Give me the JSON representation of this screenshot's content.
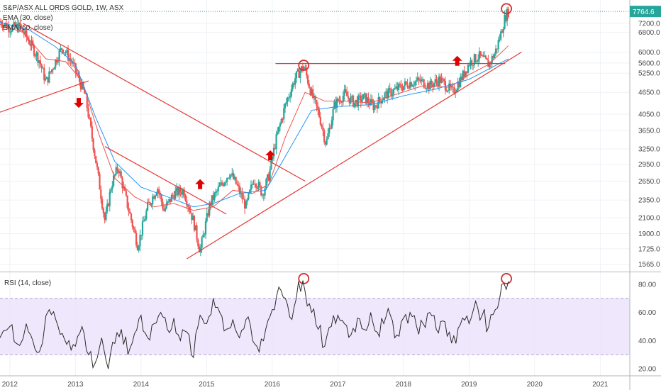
{
  "chart_data": [
    {
      "type": "candlestick",
      "title": "S&P/ASX ALL ORDS GOLD, 1W, ASX",
      "indicators": [
        {
          "name": "EMA (30, close)",
          "color": "#ef5350"
        },
        {
          "name": "EMA (50, close)",
          "color": "#2196f3"
        }
      ],
      "last_price": "7764.6",
      "y_scale": "log",
      "ylim": [
        1500,
        8200
      ],
      "y_ticks": [
        "7200.0",
        "6800.0",
        "6000.0",
        "5600.0",
        "5250.0",
        "4650.0",
        "4050.0",
        "3650.0",
        "3250.0",
        "2950.0",
        "2650.0",
        "2350.0",
        "2100.0",
        "1900.0",
        "1725.0",
        "1565.0"
      ],
      "x_ticks": [
        "2012",
        "2013",
        "2014",
        "2015",
        "2016",
        "2017",
        "2018",
        "2019",
        "2020",
        "2021"
      ],
      "xlim": [
        2011.85,
        2021.45
      ],
      "price_path": [
        [
          2011.85,
          7300
        ],
        [
          2012.0,
          7000
        ],
        [
          2012.15,
          7050
        ],
        [
          2012.3,
          6400
        ],
        [
          2012.45,
          5700
        ],
        [
          2012.55,
          4950
        ],
        [
          2012.7,
          5700
        ],
        [
          2012.8,
          6200
        ],
        [
          2012.95,
          5600
        ],
        [
          2013.05,
          5050
        ],
        [
          2013.15,
          4550
        ],
        [
          2013.3,
          3100
        ],
        [
          2013.45,
          2050
        ],
        [
          2013.55,
          2600
        ],
        [
          2013.65,
          2900
        ],
        [
          2013.8,
          2250
        ],
        [
          2013.95,
          1760
        ],
        [
          2014.1,
          2250
        ],
        [
          2014.25,
          2550
        ],
        [
          2014.35,
          2200
        ],
        [
          2014.5,
          2450
        ],
        [
          2014.65,
          2500
        ],
        [
          2014.8,
          2050
        ],
        [
          2014.9,
          1700
        ],
        [
          2015.05,
          2300
        ],
        [
          2015.2,
          2550
        ],
        [
          2015.35,
          2800
        ],
        [
          2015.45,
          2600
        ],
        [
          2015.6,
          2250
        ],
        [
          2015.72,
          2700
        ],
        [
          2015.85,
          2450
        ],
        [
          2015.95,
          2750
        ],
        [
          2016.05,
          3400
        ],
        [
          2016.2,
          4300
        ],
        [
          2016.35,
          5100
        ],
        [
          2016.48,
          5500
        ],
        [
          2016.6,
          4600
        ],
        [
          2016.72,
          4000
        ],
        [
          2016.82,
          3350
        ],
        [
          2016.95,
          4300
        ],
        [
          2017.1,
          4600
        ],
        [
          2017.25,
          4350
        ],
        [
          2017.4,
          4500
        ],
        [
          2017.55,
          4250
        ],
        [
          2017.7,
          4550
        ],
        [
          2017.85,
          4700
        ],
        [
          2017.95,
          4800
        ],
        [
          2018.1,
          4950
        ],
        [
          2018.25,
          5000
        ],
        [
          2018.4,
          4850
        ],
        [
          2018.55,
          5050
        ],
        [
          2018.65,
          4850
        ],
        [
          2018.75,
          4650
        ],
        [
          2018.9,
          5150
        ],
        [
          2019.0,
          5600
        ],
        [
          2019.15,
          5850
        ],
        [
          2019.3,
          5550
        ],
        [
          2019.4,
          6000
        ],
        [
          2019.48,
          6700
        ],
        [
          2019.55,
          7500
        ],
        [
          2019.6,
          7764.6
        ]
      ],
      "ema30_path": [
        [
          2011.85,
          7150
        ],
        [
          2012.2,
          6800
        ],
        [
          2012.55,
          5750
        ],
        [
          2012.85,
          5650
        ],
        [
          2013.1,
          5000
        ],
        [
          2013.35,
          3600
        ],
        [
          2013.6,
          2700
        ],
        [
          2013.9,
          2400
        ],
        [
          2014.2,
          2250
        ],
        [
          2014.5,
          2300
        ],
        [
          2014.8,
          2200
        ],
        [
          2015.1,
          2250
        ],
        [
          2015.4,
          2500
        ],
        [
          2015.7,
          2450
        ],
        [
          2015.95,
          2600
        ],
        [
          2016.2,
          3500
        ],
        [
          2016.5,
          4650
        ],
        [
          2016.8,
          4400
        ],
        [
          2017.1,
          4400
        ],
        [
          2017.5,
          4350
        ],
        [
          2017.9,
          4600
        ],
        [
          2018.3,
          4850
        ],
        [
          2018.7,
          4800
        ],
        [
          2019.0,
          5200
        ],
        [
          2019.3,
          5550
        ],
        [
          2019.6,
          6250
        ]
      ],
      "ema50_path": [
        [
          2011.85,
          7250
        ],
        [
          2012.3,
          6900
        ],
        [
          2012.7,
          6200
        ],
        [
          2013.0,
          5550
        ],
        [
          2013.3,
          4000
        ],
        [
          2013.6,
          3000
        ],
        [
          2014.0,
          2550
        ],
        [
          2014.4,
          2400
        ],
        [
          2014.8,
          2250
        ],
        [
          2015.1,
          2300
        ],
        [
          2015.5,
          2450
        ],
        [
          2015.9,
          2500
        ],
        [
          2016.2,
          3100
        ],
        [
          2016.6,
          4150
        ],
        [
          2017.0,
          4250
        ],
        [
          2017.5,
          4300
        ],
        [
          2018.0,
          4550
        ],
        [
          2018.5,
          4750
        ],
        [
          2019.0,
          5050
        ],
        [
          2019.6,
          5750
        ]
      ],
      "trendlines": [
        {
          "from": [
            2011.85,
            4100
          ],
          "to": [
            2013.2,
            5000
          ]
        },
        {
          "from": [
            2012.2,
            7200
          ],
          "to": [
            2016.5,
            2650
          ]
        },
        {
          "from": [
            2013.45,
            3300
          ],
          "to": [
            2015.3,
            2150
          ]
        },
        {
          "from": [
            2014.7,
            1620
          ],
          "to": [
            2019.8,
            6000
          ]
        },
        {
          "from": [
            2016.05,
            5580
          ],
          "to": [
            2019.55,
            5580
          ]
        }
      ],
      "arrows": [
        {
          "x": 2013.05,
          "price": 4350,
          "dir": "down"
        },
        {
          "x": 2014.9,
          "price": 2600,
          "dir": "up"
        },
        {
          "x": 2015.97,
          "price": 3120,
          "dir": "up"
        },
        {
          "x": 2018.82,
          "price": 5680,
          "dir": "up"
        }
      ],
      "circles": [
        {
          "x": 2016.48,
          "price": 5520
        },
        {
          "x": 2019.57,
          "price": 7900
        }
      ]
    },
    {
      "type": "line",
      "title": "RSI (14, close)",
      "ylim": [
        15,
        88
      ],
      "y_ticks": [
        "80.00",
        "60.00",
        "40.00",
        "20.00"
      ],
      "band": [
        30,
        70
      ],
      "x": [
        2011.85,
        2012.0,
        2012.1,
        2012.25,
        2012.35,
        2012.45,
        2012.6,
        2012.7,
        2012.8,
        2012.9,
        2013.0,
        2013.1,
        2013.2,
        2013.3,
        2013.4,
        2013.5,
        2013.6,
        2013.7,
        2013.8,
        2013.9,
        2014.0,
        2014.1,
        2014.2,
        2014.3,
        2014.4,
        2014.5,
        2014.6,
        2014.7,
        2014.8,
        2014.9,
        2015.0,
        2015.1,
        2015.2,
        2015.3,
        2015.4,
        2015.5,
        2015.6,
        2015.7,
        2015.8,
        2015.9,
        2016.0,
        2016.1,
        2016.2,
        2016.3,
        2016.4,
        2016.5,
        2016.6,
        2016.7,
        2016.8,
        2016.9,
        2017.0,
        2017.1,
        2017.2,
        2017.3,
        2017.4,
        2017.5,
        2017.6,
        2017.7,
        2017.8,
        2017.9,
        2018.0,
        2018.1,
        2018.2,
        2018.3,
        2018.4,
        2018.5,
        2018.6,
        2018.7,
        2018.8,
        2018.9,
        2019.0,
        2019.1,
        2019.2,
        2019.3,
        2019.4,
        2019.5,
        2019.6
      ],
      "values": [
        42,
        50,
        38,
        52,
        40,
        32,
        62,
        55,
        45,
        40,
        36,
        50,
        30,
        24,
        42,
        20,
        38,
        48,
        30,
        45,
        58,
        42,
        52,
        60,
        48,
        56,
        40,
        46,
        28,
        58,
        52,
        70,
        60,
        48,
        55,
        42,
        55,
        40,
        32,
        48,
        62,
        78,
        70,
        55,
        82,
        75,
        60,
        48,
        36,
        50,
        58,
        52,
        44,
        56,
        48,
        60,
        46,
        52,
        58,
        44,
        56,
        60,
        50,
        52,
        60,
        48,
        54,
        46,
        38,
        56,
        52,
        68,
        58,
        50,
        62,
        80,
        82
      ]
    }
  ]
}
